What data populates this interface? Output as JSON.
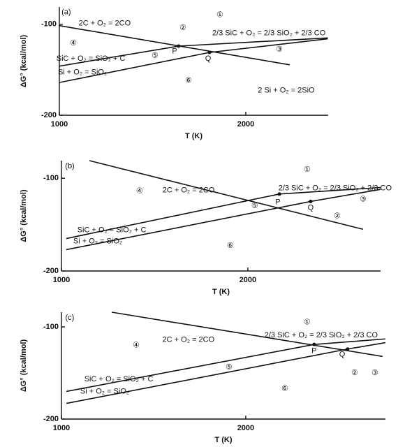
{
  "chart_data": [
    {
      "type": "line",
      "x_label": "T (K)",
      "y_label": "ΔG° (kcal/mol)",
      "xlim": [
        1000,
        2442
      ],
      "ylim": [
        -200,
        -81
      ],
      "xticks": [
        1000,
        2000
      ],
      "yticks": [
        -200,
        -100
      ],
      "series": [
        {
          "color": "#111111",
          "x": [
            1000,
            2236
          ],
          "values": [
            -101.5,
            -144.6
          ]
        },
        {
          "color": "#111111",
          "x": [
            1000,
            1640
          ],
          "values": [
            -146,
            -124
          ]
        },
        {
          "color": "#111111",
          "x": [
            1640,
            2440
          ],
          "values": [
            -124,
            -115
          ]
        },
        {
          "color": "#111111",
          "x": [
            1000,
            1805
          ],
          "values": [
            -164,
            -131
          ]
        },
        {
          "color": "#111111",
          "x": [
            1805,
            2440
          ],
          "values": [
            -131,
            -116
          ]
        }
      ],
      "points": {
        "x": [
          1640,
          1805
        ],
        "values": [
          -124,
          -131
        ]
      },
      "annotations": [
        {
          "text": "(a)",
          "x": 1037,
          "y": -87
        },
        {
          "text": "①",
          "x": 1861,
          "y": -90
        },
        {
          "text": "②",
          "x": 1663,
          "y": -104
        },
        {
          "text": "③",
          "x": 2180,
          "y": -128
        },
        {
          "text": "④",
          "x": 1075,
          "y": -121
        },
        {
          "text": "⑤",
          "x": 1513,
          "y": -135
        },
        {
          "text": "⑥",
          "x": 1693,
          "y": -162
        },
        {
          "text": "2C + O₂ = 2CO",
          "x": 1243,
          "y": -99
        },
        {
          "text": "2/3 SiC + O₂ = 2/3 SiO₂ + 2/3 CO",
          "x": 2124,
          "y": -110
        },
        {
          "text": "SiC + O₂ = SiO₂ + C",
          "x": 1169,
          "y": -138
        },
        {
          "text": "Si + O₂ = SiO₂",
          "x": 1124,
          "y": -153
        },
        {
          "text": "2 Si + O₂ = 2SiO",
          "x": 2217,
          "y": -173
        },
        {
          "text": "P",
          "x": 1618,
          "y": -130
        },
        {
          "text": "Q",
          "x": 1798,
          "y": -138
        }
      ]
    },
    {
      "type": "line",
      "x_label": "T (K)",
      "y_label": "ΔG° (kcal/mol)",
      "xlim": [
        1000,
        2712
      ],
      "ylim": [
        -200,
        -81
      ],
      "xticks": [
        1000,
        2000
      ],
      "yticks": [
        -200,
        -100
      ],
      "series": [
        {
          "color": "#111111",
          "x": [
            1150,
            2618
          ],
          "values": [
            -81,
            -155
          ]
        },
        {
          "color": "#111111",
          "x": [
            1026,
            2169
          ],
          "values": [
            -165,
            -117
          ]
        },
        {
          "color": "#111111",
          "x": [
            2169,
            2712
          ],
          "values": [
            -117,
            -110
          ]
        },
        {
          "color": "#111111",
          "x": [
            1026,
            2337
          ],
          "values": [
            -177,
            -125
          ]
        },
        {
          "color": "#111111",
          "x": [
            2337,
            2712
          ],
          "values": [
            -125,
            -112
          ]
        }
      ],
      "points": {
        "x": [
          2169,
          2337
        ],
        "values": [
          -117,
          -125
        ]
      },
      "annotations": [
        {
          "text": "(b)",
          "x": 1045,
          "y": -87
        },
        {
          "text": "①",
          "x": 2318,
          "y": -91
        },
        {
          "text": "2C + O₂ = 2CO",
          "x": 1682,
          "y": -113
        },
        {
          "text": "2/3 SiC + O₂ = 2/3 SiO₂ + 2/3 CO",
          "x": 2468,
          "y": -111
        },
        {
          "text": "④",
          "x": 1419,
          "y": -114
        },
        {
          "text": "③",
          "x": 2618,
          "y": -123
        },
        {
          "text": "⑤",
          "x": 2037,
          "y": -130
        },
        {
          "text": "P",
          "x": 2161,
          "y": -126
        },
        {
          "text": "Q",
          "x": 2337,
          "y": -132
        },
        {
          "text": "②",
          "x": 2479,
          "y": -141
        },
        {
          "text": "SiC + O₂ = SiO₂ + C",
          "x": 1270,
          "y": -156
        },
        {
          "text": "Si + O₂ = SiO₂",
          "x": 1195,
          "y": -168
        },
        {
          "text": "⑥",
          "x": 1906,
          "y": -173
        }
      ]
    },
    {
      "type": "line",
      "x_label": "T (K)",
      "y_label": "ΔG° (kcal/mol)",
      "xlim": [
        1000,
        2758
      ],
      "ylim": [
        -200,
        -84
      ],
      "xticks": [
        1000,
        2000
      ],
      "yticks": [
        -200,
        -100
      ],
      "series": [
        {
          "color": "#111111",
          "x": [
            1273,
            2742
          ],
          "values": [
            -84,
            -132
          ]
        },
        {
          "color": "#111111",
          "x": [
            1027,
            2371
          ],
          "values": [
            -170,
            -119
          ]
        },
        {
          "color": "#111111",
          "x": [
            2371,
            2758
          ],
          "values": [
            -119,
            -113
          ]
        },
        {
          "color": "#111111",
          "x": [
            1027,
            2553
          ],
          "values": [
            -183,
            -124
          ]
        },
        {
          "color": "#111111",
          "x": [
            2553,
            2758
          ],
          "values": [
            -124,
            -117
          ]
        }
      ],
      "points": {
        "x": [
          2371,
          2553
        ],
        "values": [
          -119,
          -124
        ]
      },
      "annotations": [
        {
          "text": "(c)",
          "x": 1045,
          "y": -90
        },
        {
          "text": "①",
          "x": 2333,
          "y": -95
        },
        {
          "text": "2C + O₂ = 2CO",
          "x": 1689,
          "y": -114
        },
        {
          "text": "2/3 SiC + O₂ = 2/3 SiO₂ + 2/3 CO",
          "x": 2409,
          "y": -109
        },
        {
          "text": "④",
          "x": 1405,
          "y": -120
        },
        {
          "text": "⑤",
          "x": 1909,
          "y": -144
        },
        {
          "text": "P",
          "x": 2371,
          "y": -126
        },
        {
          "text": "Q",
          "x": 2523,
          "y": -130
        },
        {
          "text": "②",
          "x": 2591,
          "y": -150
        },
        {
          "text": "③",
          "x": 2701,
          "y": -150
        },
        {
          "text": "SiC + O₂ = SiO₂ + C",
          "x": 1311,
          "y": -157
        },
        {
          "text": "Si + O₂ = SiO₂",
          "x": 1235,
          "y": -170
        },
        {
          "text": "⑥",
          "x": 2212,
          "y": -167
        }
      ]
    }
  ]
}
